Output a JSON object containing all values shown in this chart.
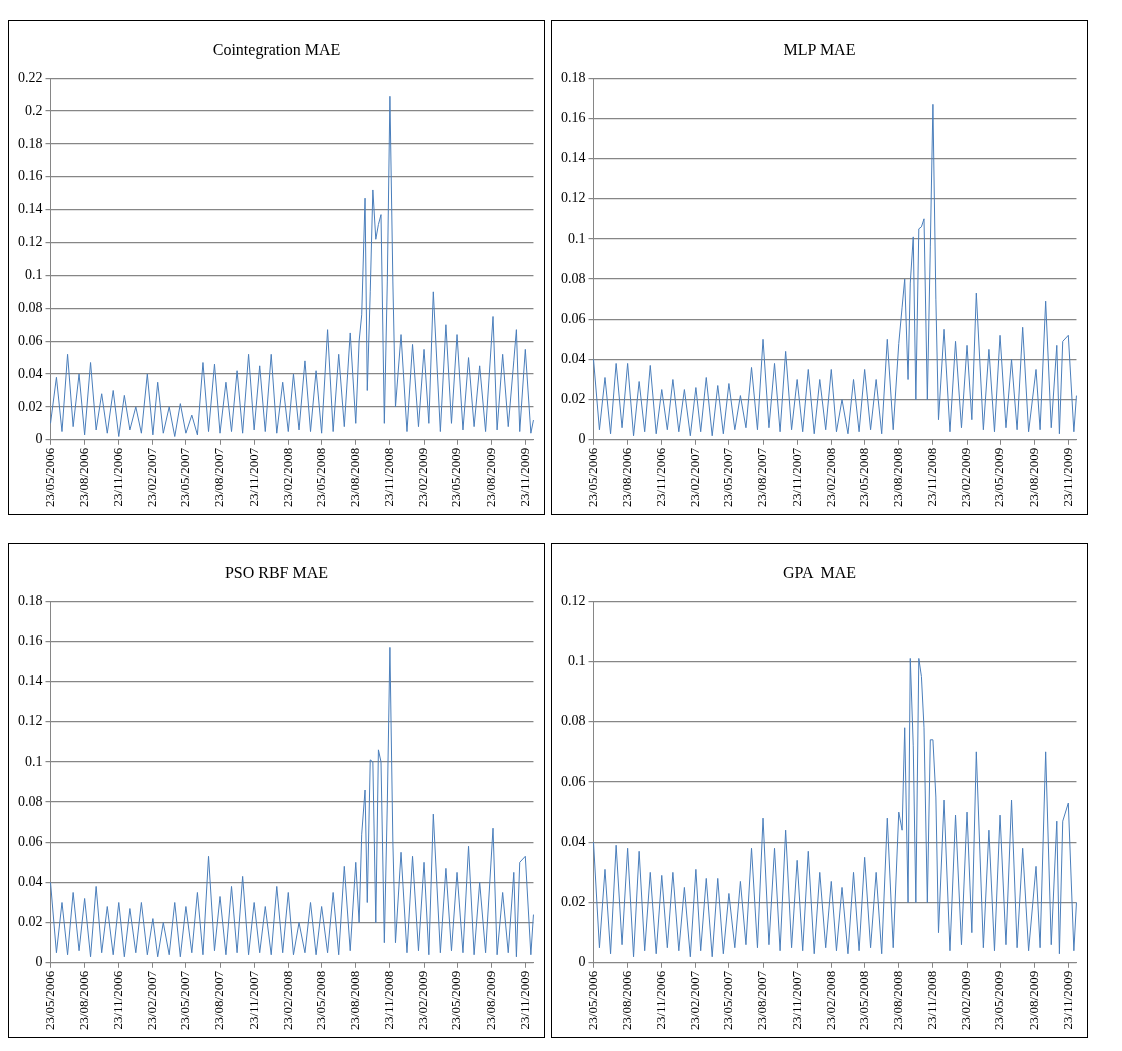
{
  "chart_data": [
    {
      "type": "line",
      "title": "Cointegration MAE",
      "color": "#4a7ebb",
      "grid": "y",
      "x": [
        "2006-05-23",
        "2006-06-08",
        "2006-06-23",
        "2006-07-08",
        "2006-07-23",
        "2006-08-08",
        "2006-08-23",
        "2006-09-08",
        "2006-09-23",
        "2006-10-08",
        "2006-10-23",
        "2006-11-08",
        "2006-11-23",
        "2006-12-08",
        "2006-12-23",
        "2007-01-08",
        "2007-01-23",
        "2007-02-08",
        "2007-02-23",
        "2007-03-08",
        "2007-03-23",
        "2007-04-08",
        "2007-04-23",
        "2007-05-08",
        "2007-05-23",
        "2007-06-08",
        "2007-06-23",
        "2007-07-08",
        "2007-07-23",
        "2007-08-08",
        "2007-08-23",
        "2007-09-08",
        "2007-09-23",
        "2007-10-08",
        "2007-10-23",
        "2007-11-08",
        "2007-11-23",
        "2007-12-08",
        "2007-12-23",
        "2008-01-08",
        "2008-01-23",
        "2008-02-08",
        "2008-02-23",
        "2008-03-08",
        "2008-03-23",
        "2008-04-08",
        "2008-04-23",
        "2008-05-08",
        "2008-05-23",
        "2008-06-08",
        "2008-06-23",
        "2008-07-08",
        "2008-07-23",
        "2008-08-08",
        "2008-08-23",
        "2008-09-01",
        "2008-09-08",
        "2008-09-17",
        "2008-09-23",
        "2008-10-01",
        "2008-10-08",
        "2008-10-16",
        "2008-10-23",
        "2008-10-30",
        "2008-11-08",
        "2008-11-16",
        "2008-11-23",
        "2008-12-01",
        "2008-12-08",
        "2008-12-23",
        "2009-01-08",
        "2009-01-23",
        "2009-02-08",
        "2009-02-23",
        "2009-03-08",
        "2009-03-20",
        "2009-04-08",
        "2009-04-23",
        "2009-05-08",
        "2009-05-23",
        "2009-06-08",
        "2009-06-23",
        "2009-07-08",
        "2009-07-23",
        "2009-08-08",
        "2009-08-28",
        "2009-09-08",
        "2009-09-23",
        "2009-10-08",
        "2009-10-23",
        "2009-10-30",
        "2009-11-08",
        "2009-11-23",
        "2009-12-08",
        "2009-12-15"
      ],
      "values": [
        0.01,
        0.038,
        0.005,
        0.052,
        0.008,
        0.04,
        0.003,
        0.047,
        0.006,
        0.028,
        0.004,
        0.03,
        0.002,
        0.027,
        0.006,
        0.02,
        0.004,
        0.04,
        0.003,
        0.035,
        0.004,
        0.02,
        0.002,
        0.022,
        0.004,
        0.015,
        0.003,
        0.047,
        0.005,
        0.046,
        0.004,
        0.035,
        0.005,
        0.042,
        0.004,
        0.052,
        0.006,
        0.045,
        0.005,
        0.052,
        0.004,
        0.035,
        0.005,
        0.04,
        0.006,
        0.048,
        0.005,
        0.042,
        0.004,
        0.067,
        0.005,
        0.052,
        0.008,
        0.065,
        0.01,
        0.06,
        0.076,
        0.147,
        0.03,
        0.09,
        0.152,
        0.122,
        0.131,
        0.137,
        0.01,
        0.096,
        0.209,
        0.096,
        0.02,
        0.064,
        0.005,
        0.058,
        0.008,
        0.055,
        0.01,
        0.09,
        0.005,
        0.07,
        0.01,
        0.064,
        0.006,
        0.05,
        0.008,
        0.045,
        0.005,
        0.075,
        0.006,
        0.052,
        0.008,
        0.048,
        0.067,
        0.005,
        0.055,
        0.004,
        0.012
      ],
      "xlim": [
        "2006-05-23",
        "2009-12-15"
      ],
      "xticks": [
        {
          "value": "2006-05-23",
          "label": "23/05/2006"
        },
        {
          "value": "2006-08-23",
          "label": "23/08/2006"
        },
        {
          "value": "2006-11-23",
          "label": "23/11/2006"
        },
        {
          "value": "2007-02-23",
          "label": "23/02/2007"
        },
        {
          "value": "2007-05-23",
          "label": "23/05/2007"
        },
        {
          "value": "2007-08-23",
          "label": "23/08/2007"
        },
        {
          "value": "2007-11-23",
          "label": "23/11/2007"
        },
        {
          "value": "2008-02-23",
          "label": "23/02/2008"
        },
        {
          "value": "2008-05-23",
          "label": "23/05/2008"
        },
        {
          "value": "2008-08-23",
          "label": "23/08/2008"
        },
        {
          "value": "2008-11-23",
          "label": "23/11/2008"
        },
        {
          "value": "2009-02-23",
          "label": "23/02/2009"
        },
        {
          "value": "2009-05-23",
          "label": "23/05/2009"
        },
        {
          "value": "2009-08-23",
          "label": "23/08/2009"
        },
        {
          "value": "2009-11-23",
          "label": "23/11/2009"
        }
      ],
      "ylim": [
        0,
        0.22
      ],
      "yticks": [
        0,
        0.02,
        0.04,
        0.06,
        0.08,
        0.1,
        0.12,
        0.14,
        0.16,
        0.18,
        0.2,
        0.22
      ]
    },
    {
      "type": "line",
      "title": "MLP MAE",
      "color": "#4a7ebb",
      "grid": "y",
      "x": [
        "2006-05-23",
        "2006-06-08",
        "2006-06-23",
        "2006-07-08",
        "2006-07-23",
        "2006-08-08",
        "2006-08-23",
        "2006-09-08",
        "2006-09-23",
        "2006-10-08",
        "2006-10-23",
        "2006-11-08",
        "2006-11-23",
        "2006-12-08",
        "2006-12-23",
        "2007-01-08",
        "2007-01-23",
        "2007-02-08",
        "2007-02-23",
        "2007-03-08",
        "2007-03-23",
        "2007-04-08",
        "2007-04-23",
        "2007-05-08",
        "2007-05-23",
        "2007-06-08",
        "2007-06-23",
        "2007-07-08",
        "2007-07-23",
        "2007-08-08",
        "2007-08-23",
        "2007-09-08",
        "2007-09-23",
        "2007-10-08",
        "2007-10-23",
        "2007-11-08",
        "2007-11-23",
        "2007-12-08",
        "2007-12-23",
        "2008-01-08",
        "2008-01-23",
        "2008-02-08",
        "2008-02-23",
        "2008-03-08",
        "2008-03-23",
        "2008-04-08",
        "2008-04-23",
        "2008-05-08",
        "2008-05-23",
        "2008-06-08",
        "2008-06-23",
        "2008-07-08",
        "2008-07-23",
        "2008-08-08",
        "2008-08-23",
        "2008-09-01",
        "2008-09-08",
        "2008-09-17",
        "2008-09-23",
        "2008-10-01",
        "2008-10-08",
        "2008-10-16",
        "2008-10-23",
        "2008-10-30",
        "2008-11-08",
        "2008-11-16",
        "2008-11-23",
        "2008-12-01",
        "2008-12-08",
        "2008-12-23",
        "2009-01-08",
        "2009-01-23",
        "2009-02-08",
        "2009-02-23",
        "2009-03-08",
        "2009-03-20",
        "2009-04-08",
        "2009-04-23",
        "2009-05-08",
        "2009-05-23",
        "2009-06-08",
        "2009-06-23",
        "2009-07-08",
        "2009-07-23",
        "2009-08-08",
        "2009-08-28",
        "2009-09-08",
        "2009-09-23",
        "2009-10-08",
        "2009-10-23",
        "2009-10-30",
        "2009-11-08",
        "2009-11-23",
        "2009-12-08",
        "2009-12-15"
      ],
      "values": [
        0.04,
        0.005,
        0.031,
        0.003,
        0.038,
        0.006,
        0.038,
        0.002,
        0.029,
        0.004,
        0.037,
        0.003,
        0.025,
        0.005,
        0.03,
        0.004,
        0.025,
        0.002,
        0.026,
        0.004,
        0.031,
        0.002,
        0.027,
        0.003,
        0.028,
        0.005,
        0.022,
        0.006,
        0.036,
        0.005,
        0.05,
        0.006,
        0.038,
        0.004,
        0.044,
        0.005,
        0.03,
        0.004,
        0.035,
        0.003,
        0.03,
        0.005,
        0.035,
        0.004,
        0.02,
        0.003,
        0.03,
        0.004,
        0.035,
        0.005,
        0.03,
        0.003,
        0.05,
        0.005,
        0.048,
        0.066,
        0.08,
        0.03,
        0.078,
        0.101,
        0.02,
        0.105,
        0.106,
        0.11,
        0.02,
        0.096,
        0.167,
        0.07,
        0.01,
        0.055,
        0.004,
        0.049,
        0.006,
        0.047,
        0.01,
        0.073,
        0.005,
        0.045,
        0.004,
        0.052,
        0.006,
        0.04,
        0.005,
        0.056,
        0.004,
        0.035,
        0.005,
        0.069,
        0.006,
        0.047,
        0.003,
        0.049,
        0.052,
        0.004,
        0.022
      ],
      "xlim": [
        "2006-05-23",
        "2009-12-15"
      ],
      "xticks": [
        {
          "value": "2006-05-23",
          "label": "23/05/2006"
        },
        {
          "value": "2006-08-23",
          "label": "23/08/2006"
        },
        {
          "value": "2006-11-23",
          "label": "23/11/2006"
        },
        {
          "value": "2007-02-23",
          "label": "23/02/2007"
        },
        {
          "value": "2007-05-23",
          "label": "23/05/2007"
        },
        {
          "value": "2007-08-23",
          "label": "23/08/2007"
        },
        {
          "value": "2007-11-23",
          "label": "23/11/2007"
        },
        {
          "value": "2008-02-23",
          "label": "23/02/2008"
        },
        {
          "value": "2008-05-23",
          "label": "23/05/2008"
        },
        {
          "value": "2008-08-23",
          "label": "23/08/2008"
        },
        {
          "value": "2008-11-23",
          "label": "23/11/2008"
        },
        {
          "value": "2009-02-23",
          "label": "23/02/2009"
        },
        {
          "value": "2009-05-23",
          "label": "23/05/2009"
        },
        {
          "value": "2009-08-23",
          "label": "23/08/2009"
        },
        {
          "value": "2009-11-23",
          "label": "23/11/2009"
        }
      ],
      "ylim": [
        0,
        0.18
      ],
      "yticks": [
        0,
        0.02,
        0.04,
        0.06,
        0.08,
        0.1,
        0.12,
        0.14,
        0.16,
        0.18
      ]
    },
    {
      "type": "line",
      "title": "PSO RBF MAE",
      "color": "#4a7ebb",
      "grid": "y",
      "x": [
        "2006-05-23",
        "2006-06-08",
        "2006-06-23",
        "2006-07-08",
        "2006-07-23",
        "2006-08-08",
        "2006-08-23",
        "2006-09-08",
        "2006-09-23",
        "2006-10-08",
        "2006-10-23",
        "2006-11-08",
        "2006-11-23",
        "2006-12-08",
        "2006-12-23",
        "2007-01-08",
        "2007-01-23",
        "2007-02-08",
        "2007-02-23",
        "2007-03-08",
        "2007-03-23",
        "2007-04-08",
        "2007-04-23",
        "2007-05-08",
        "2007-05-23",
        "2007-06-08",
        "2007-06-23",
        "2007-07-08",
        "2007-07-23",
        "2007-08-08",
        "2007-08-23",
        "2007-09-08",
        "2007-09-23",
        "2007-10-08",
        "2007-10-23",
        "2007-11-08",
        "2007-11-23",
        "2007-12-08",
        "2007-12-23",
        "2008-01-08",
        "2008-01-23",
        "2008-02-08",
        "2008-02-23",
        "2008-03-08",
        "2008-03-23",
        "2008-04-08",
        "2008-04-23",
        "2008-05-08",
        "2008-05-23",
        "2008-06-08",
        "2008-06-23",
        "2008-07-08",
        "2008-07-23",
        "2008-08-08",
        "2008-08-23",
        "2008-09-01",
        "2008-09-08",
        "2008-09-17",
        "2008-09-23",
        "2008-10-01",
        "2008-10-08",
        "2008-10-16",
        "2008-10-23",
        "2008-10-30",
        "2008-11-08",
        "2008-11-16",
        "2008-11-23",
        "2008-12-01",
        "2008-12-08",
        "2008-12-23",
        "2009-01-08",
        "2009-01-23",
        "2009-02-08",
        "2009-02-23",
        "2009-03-08",
        "2009-03-20",
        "2009-04-08",
        "2009-04-23",
        "2009-05-08",
        "2009-05-23",
        "2009-06-08",
        "2009-06-23",
        "2009-07-08",
        "2009-07-23",
        "2009-08-08",
        "2009-08-28",
        "2009-09-08",
        "2009-09-23",
        "2009-10-08",
        "2009-10-23",
        "2009-10-30",
        "2009-11-08",
        "2009-11-23",
        "2009-12-08",
        "2009-12-15"
      ],
      "values": [
        0.04,
        0.005,
        0.03,
        0.004,
        0.035,
        0.006,
        0.032,
        0.003,
        0.038,
        0.005,
        0.028,
        0.004,
        0.03,
        0.003,
        0.027,
        0.005,
        0.03,
        0.004,
        0.022,
        0.003,
        0.02,
        0.004,
        0.03,
        0.003,
        0.028,
        0.005,
        0.035,
        0.004,
        0.053,
        0.006,
        0.033,
        0.004,
        0.038,
        0.005,
        0.043,
        0.004,
        0.03,
        0.005,
        0.028,
        0.004,
        0.038,
        0.005,
        0.035,
        0.004,
        0.02,
        0.005,
        0.03,
        0.004,
        0.028,
        0.005,
        0.035,
        0.004,
        0.048,
        0.006,
        0.05,
        0.02,
        0.064,
        0.086,
        0.03,
        0.101,
        0.1,
        0.02,
        0.106,
        0.1,
        0.01,
        0.079,
        0.157,
        0.06,
        0.01,
        0.055,
        0.005,
        0.053,
        0.006,
        0.05,
        0.004,
        0.074,
        0.005,
        0.047,
        0.006,
        0.045,
        0.005,
        0.058,
        0.004,
        0.04,
        0.005,
        0.067,
        0.004,
        0.035,
        0.005,
        0.045,
        0.003,
        0.05,
        0.053,
        0.004,
        0.024
      ],
      "xlim": [
        "2006-05-23",
        "2009-12-15"
      ],
      "xticks": [
        {
          "value": "2006-05-23",
          "label": "23/05/2006"
        },
        {
          "value": "2006-08-23",
          "label": "23/08/2006"
        },
        {
          "value": "2006-11-23",
          "label": "23/11/2006"
        },
        {
          "value": "2007-02-23",
          "label": "23/02/2007"
        },
        {
          "value": "2007-05-23",
          "label": "23/05/2007"
        },
        {
          "value": "2007-08-23",
          "label": "23/08/2007"
        },
        {
          "value": "2007-11-23",
          "label": "23/11/2007"
        },
        {
          "value": "2008-02-23",
          "label": "23/02/2008"
        },
        {
          "value": "2008-05-23",
          "label": "23/05/2008"
        },
        {
          "value": "2008-08-23",
          "label": "23/08/2008"
        },
        {
          "value": "2008-11-23",
          "label": "23/11/2008"
        },
        {
          "value": "2009-02-23",
          "label": "23/02/2009"
        },
        {
          "value": "2009-05-23",
          "label": "23/05/2009"
        },
        {
          "value": "2009-08-23",
          "label": "23/08/2009"
        },
        {
          "value": "2009-11-23",
          "label": "23/11/2009"
        }
      ],
      "ylim": [
        0,
        0.18
      ],
      "yticks": [
        0,
        0.02,
        0.04,
        0.06,
        0.08,
        0.1,
        0.12,
        0.14,
        0.16,
        0.18
      ]
    },
    {
      "type": "line",
      "title": "GPA  MAE",
      "color": "#4a7ebb",
      "grid": "y",
      "x": [
        "2006-05-23",
        "2006-06-08",
        "2006-06-23",
        "2006-07-08",
        "2006-07-23",
        "2006-08-08",
        "2006-08-23",
        "2006-09-08",
        "2006-09-23",
        "2006-10-08",
        "2006-10-23",
        "2006-11-08",
        "2006-11-23",
        "2006-12-08",
        "2006-12-23",
        "2007-01-08",
        "2007-01-23",
        "2007-02-08",
        "2007-02-23",
        "2007-03-08",
        "2007-03-23",
        "2007-04-08",
        "2007-04-23",
        "2007-05-08",
        "2007-05-23",
        "2007-06-08",
        "2007-06-23",
        "2007-07-08",
        "2007-07-23",
        "2007-08-08",
        "2007-08-23",
        "2007-09-08",
        "2007-09-23",
        "2007-10-08",
        "2007-10-23",
        "2007-11-08",
        "2007-11-23",
        "2007-12-08",
        "2007-12-23",
        "2008-01-08",
        "2008-01-23",
        "2008-02-08",
        "2008-02-23",
        "2008-03-08",
        "2008-03-23",
        "2008-04-08",
        "2008-04-23",
        "2008-05-08",
        "2008-05-23",
        "2008-06-08",
        "2008-06-23",
        "2008-07-08",
        "2008-07-23",
        "2008-08-08",
        "2008-08-23",
        "2008-09-01",
        "2008-09-08",
        "2008-09-17",
        "2008-09-23",
        "2008-10-01",
        "2008-10-08",
        "2008-10-16",
        "2008-10-23",
        "2008-10-30",
        "2008-11-08",
        "2008-11-16",
        "2008-11-23",
        "2008-12-01",
        "2008-12-08",
        "2008-12-23",
        "2009-01-08",
        "2009-01-23",
        "2009-02-08",
        "2009-02-23",
        "2009-03-08",
        "2009-03-20",
        "2009-04-08",
        "2009-04-23",
        "2009-05-08",
        "2009-05-23",
        "2009-06-08",
        "2009-06-23",
        "2009-07-08",
        "2009-07-23",
        "2009-08-08",
        "2009-08-28",
        "2009-09-08",
        "2009-09-23",
        "2009-10-08",
        "2009-10-23",
        "2009-10-30",
        "2009-11-08",
        "2009-11-23",
        "2009-12-08",
        "2009-12-15"
      ],
      "values": [
        0.04,
        0.005,
        0.031,
        0.003,
        0.039,
        0.006,
        0.038,
        0.002,
        0.037,
        0.004,
        0.03,
        0.003,
        0.029,
        0.005,
        0.03,
        0.004,
        0.025,
        0.002,
        0.031,
        0.004,
        0.028,
        0.002,
        0.028,
        0.003,
        0.023,
        0.005,
        0.027,
        0.006,
        0.038,
        0.005,
        0.048,
        0.006,
        0.038,
        0.004,
        0.044,
        0.005,
        0.034,
        0.004,
        0.037,
        0.003,
        0.03,
        0.005,
        0.027,
        0.004,
        0.025,
        0.003,
        0.03,
        0.004,
        0.035,
        0.005,
        0.03,
        0.003,
        0.048,
        0.005,
        0.05,
        0.044,
        0.078,
        0.02,
        0.101,
        0.072,
        0.02,
        0.101,
        0.095,
        0.078,
        0.02,
        0.074,
        0.074,
        0.055,
        0.01,
        0.054,
        0.004,
        0.049,
        0.006,
        0.05,
        0.01,
        0.07,
        0.005,
        0.044,
        0.004,
        0.049,
        0.006,
        0.054,
        0.005,
        0.038,
        0.004,
        0.032,
        0.005,
        0.07,
        0.006,
        0.047,
        0.003,
        0.047,
        0.053,
        0.004,
        0.02
      ],
      "xlim": [
        "2006-05-23",
        "2009-12-15"
      ],
      "xticks": [
        {
          "value": "2006-05-23",
          "label": "23/05/2006"
        },
        {
          "value": "2006-08-23",
          "label": "23/08/2006"
        },
        {
          "value": "2006-11-23",
          "label": "23/11/2006"
        },
        {
          "value": "2007-02-23",
          "label": "23/02/2007"
        },
        {
          "value": "2007-05-23",
          "label": "23/05/2007"
        },
        {
          "value": "2007-08-23",
          "label": "23/08/2007"
        },
        {
          "value": "2007-11-23",
          "label": "23/11/2007"
        },
        {
          "value": "2008-02-23",
          "label": "23/02/2008"
        },
        {
          "value": "2008-05-23",
          "label": "23/05/2008"
        },
        {
          "value": "2008-08-23",
          "label": "23/08/2008"
        },
        {
          "value": "2008-11-23",
          "label": "23/11/2008"
        },
        {
          "value": "2009-02-23",
          "label": "23/02/2009"
        },
        {
          "value": "2009-05-23",
          "label": "23/05/2009"
        },
        {
          "value": "2009-08-23",
          "label": "23/08/2009"
        },
        {
          "value": "2009-11-23",
          "label": "23/11/2009"
        }
      ],
      "ylim": [
        0,
        0.12
      ],
      "yticks": [
        0,
        0.02,
        0.04,
        0.06,
        0.08,
        0.1,
        0.12
      ]
    }
  ]
}
